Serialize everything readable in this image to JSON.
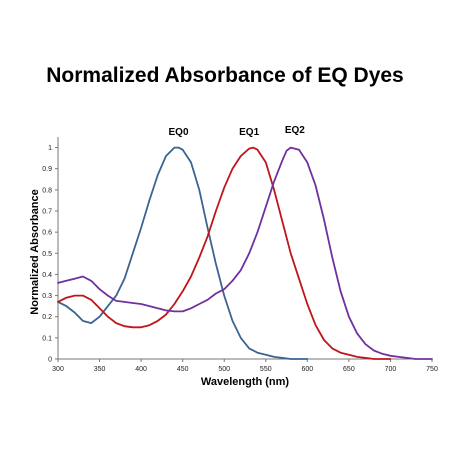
{
  "chart_data": {
    "type": "line",
    "title": "Normalized Absorbance of EQ Dyes",
    "xlabel": "Wavelength (nm)",
    "ylabel": "Normalized Absorbance",
    "xlim": [
      300,
      750
    ],
    "ylim": [
      0,
      1.05
    ],
    "xticks": [
      300,
      350,
      400,
      450,
      500,
      550,
      600,
      650,
      700,
      750
    ],
    "yticks": [
      0,
      0.1,
      0.2,
      0.3,
      0.4,
      0.5,
      0.6,
      0.7,
      0.8,
      0.9,
      1
    ],
    "ytick_labels": [
      "0",
      "0.1",
      "0.2",
      "0.3",
      "0.4",
      "0.5",
      "0.6",
      "0.7",
      "0.8",
      "0.9",
      "1"
    ],
    "grid": false,
    "legend": "none",
    "series": [
      {
        "name": "EQ0",
        "color": "#3a6491",
        "label_at": [
          445,
          1.06
        ],
        "x": [
          300,
          310,
          320,
          330,
          340,
          350,
          360,
          370,
          380,
          390,
          400,
          410,
          420,
          430,
          440,
          445,
          450,
          460,
          470,
          480,
          490,
          500,
          510,
          520,
          530,
          540,
          550,
          560,
          570,
          580,
          590,
          600
        ],
        "y": [
          0.27,
          0.25,
          0.22,
          0.18,
          0.17,
          0.2,
          0.25,
          0.3,
          0.38,
          0.5,
          0.62,
          0.75,
          0.87,
          0.96,
          1.0,
          1.0,
          0.99,
          0.93,
          0.8,
          0.62,
          0.45,
          0.3,
          0.18,
          0.1,
          0.05,
          0.03,
          0.02,
          0.01,
          0.005,
          0.0,
          0.0,
          0.0
        ]
      },
      {
        "name": "EQ1",
        "color": "#c0141a",
        "label_at": [
          530,
          1.06
        ],
        "x": [
          300,
          310,
          320,
          330,
          340,
          350,
          360,
          370,
          380,
          390,
          400,
          410,
          420,
          430,
          440,
          450,
          460,
          470,
          480,
          490,
          500,
          510,
          520,
          530,
          535,
          540,
          550,
          560,
          570,
          580,
          590,
          600,
          610,
          620,
          630,
          640,
          650,
          660,
          670,
          680,
          690,
          700
        ],
        "y": [
          0.27,
          0.29,
          0.3,
          0.3,
          0.28,
          0.24,
          0.2,
          0.17,
          0.155,
          0.15,
          0.15,
          0.16,
          0.18,
          0.21,
          0.26,
          0.32,
          0.39,
          0.48,
          0.58,
          0.7,
          0.81,
          0.9,
          0.96,
          0.995,
          1.0,
          0.99,
          0.93,
          0.8,
          0.65,
          0.5,
          0.38,
          0.26,
          0.16,
          0.09,
          0.05,
          0.03,
          0.02,
          0.01,
          0.005,
          0.0,
          0.0,
          0.0
        ]
      },
      {
        "name": "EQ2",
        "color": "#7030a0",
        "label_at": [
          585,
          1.07
        ],
        "x": [
          300,
          310,
          320,
          330,
          340,
          350,
          360,
          370,
          380,
          390,
          400,
          410,
          420,
          430,
          440,
          450,
          460,
          470,
          480,
          490,
          500,
          510,
          520,
          530,
          540,
          550,
          560,
          570,
          575,
          580,
          590,
          600,
          610,
          620,
          630,
          640,
          650,
          660,
          670,
          680,
          690,
          700,
          710,
          720,
          730,
          740,
          750
        ],
        "y": [
          0.36,
          0.37,
          0.38,
          0.39,
          0.37,
          0.33,
          0.3,
          0.275,
          0.27,
          0.265,
          0.26,
          0.25,
          0.24,
          0.23,
          0.225,
          0.225,
          0.24,
          0.26,
          0.28,
          0.31,
          0.33,
          0.37,
          0.42,
          0.5,
          0.6,
          0.72,
          0.84,
          0.94,
          0.985,
          1.0,
          0.99,
          0.93,
          0.82,
          0.66,
          0.48,
          0.32,
          0.2,
          0.12,
          0.07,
          0.04,
          0.025,
          0.015,
          0.01,
          0.005,
          0.0,
          0.0,
          0.0
        ]
      }
    ]
  }
}
